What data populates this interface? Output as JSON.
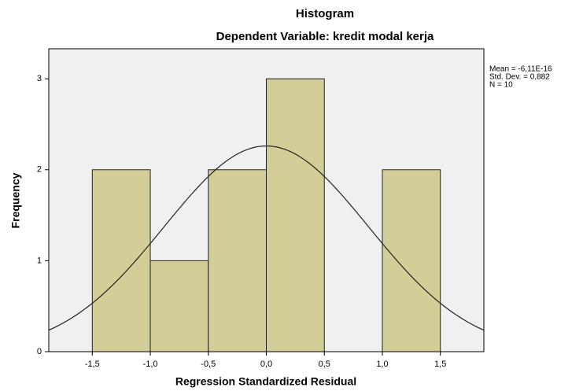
{
  "chart_data": {
    "type": "histogram",
    "title": "Histogram",
    "subtitle": "Dependent Variable: kredit modal kerja",
    "x_label": "Regression Standardized Residual",
    "y_label": "Frequency",
    "bins": [
      -1.5,
      -1.0,
      -0.5,
      0.0,
      0.5,
      1.0,
      1.5
    ],
    "counts": [
      2,
      1,
      2,
      3,
      0,
      2
    ],
    "color": "#d3ce97",
    "xlim": [
      -1.875,
      1.875
    ],
    "ylim": [
      0,
      3.33
    ],
    "xticks": [
      {
        "value": -1.5,
        "label": "-1,5"
      },
      {
        "value": -1.0,
        "label": "-1,0"
      },
      {
        "value": -0.5,
        "label": "-0,5"
      },
      {
        "value": 0.0,
        "label": "0,0"
      },
      {
        "value": 0.5,
        "label": "0,5"
      },
      {
        "value": 1.0,
        "label": "1,0"
      },
      {
        "value": 1.5,
        "label": "1,5"
      }
    ],
    "yticks": [
      0,
      1,
      2,
      3
    ],
    "stats": [
      {
        "value": -6.11e-16,
        "label": "Mean = -6,11E-16"
      },
      {
        "value": 0.882,
        "label": "Std. Dev. = 0,882"
      },
      {
        "value": 10,
        "label": "N = 10"
      }
    ]
  }
}
